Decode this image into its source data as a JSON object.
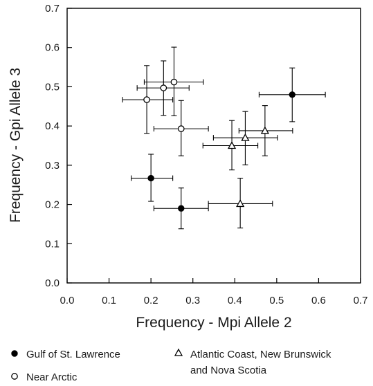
{
  "chart_data": {
    "type": "scatter",
    "xlabel": "Frequency - Mpi Allele 2",
    "ylabel": "Frequency - Gpi Allele 3",
    "xlim": [
      0.0,
      0.7
    ],
    "ylim": [
      0.0,
      0.7
    ],
    "xticks": [
      "0.0",
      "0.1",
      "0.2",
      "0.3",
      "0.4",
      "0.5",
      "0.6",
      "0.7"
    ],
    "yticks": [
      "0.0",
      "0.1",
      "0.2",
      "0.3",
      "0.4",
      "0.5",
      "0.6",
      "0.7"
    ],
    "grid": false,
    "legend_position": "bottom",
    "series": [
      {
        "name": "Gulf of St. Lawrence",
        "marker": "filled-circle",
        "color": "#000000",
        "points": [
          {
            "x": 0.2,
            "y": 0.267,
            "xerr": [
              0.153,
              0.252
            ],
            "yerr": [
              0.208,
              0.328
            ]
          },
          {
            "x": 0.272,
            "y": 0.19,
            "xerr": [
              0.207,
              0.337
            ],
            "yerr": [
              0.138,
              0.242
            ]
          },
          {
            "x": 0.537,
            "y": 0.48,
            "xerr": [
              0.458,
              0.616
            ],
            "yerr": [
              0.411,
              0.548
            ]
          }
        ]
      },
      {
        "name": "Near Arctic",
        "marker": "open-circle",
        "color": "#000000",
        "points": [
          {
            "x": 0.19,
            "y": 0.467,
            "xerr": [
              0.132,
              0.252
            ],
            "yerr": [
              0.381,
              0.554
            ]
          },
          {
            "x": 0.23,
            "y": 0.497,
            "xerr": [
              0.167,
              0.291
            ],
            "yerr": [
              0.427,
              0.566
            ]
          },
          {
            "x": 0.255,
            "y": 0.512,
            "xerr": [
              0.184,
              0.325
            ],
            "yerr": [
              0.426,
              0.601
            ]
          },
          {
            "x": 0.272,
            "y": 0.393,
            "xerr": [
              0.207,
              0.337
            ],
            "yerr": [
              0.324,
              0.465
            ]
          }
        ]
      },
      {
        "name": "Atlantic Coast, New Brunswick and Nova Scotia",
        "legend_lines": [
          "Atlantic Coast, New Brunswick",
          "and Nova Scotia"
        ],
        "marker": "open-triangle",
        "color": "#000000",
        "points": [
          {
            "x": 0.393,
            "y": 0.35,
            "xerr": [
              0.324,
              0.455
            ],
            "yerr": [
              0.288,
              0.414
            ]
          },
          {
            "x": 0.425,
            "y": 0.37,
            "xerr": [
              0.349,
              0.502
            ],
            "yerr": [
              0.301,
              0.437
            ]
          },
          {
            "x": 0.472,
            "y": 0.388,
            "xerr": [
              0.41,
              0.538
            ],
            "yerr": [
              0.324,
              0.452
            ]
          },
          {
            "x": 0.413,
            "y": 0.202,
            "xerr": [
              0.337,
              0.49
            ],
            "yerr": [
              0.14,
              0.267
            ]
          }
        ]
      }
    ]
  }
}
